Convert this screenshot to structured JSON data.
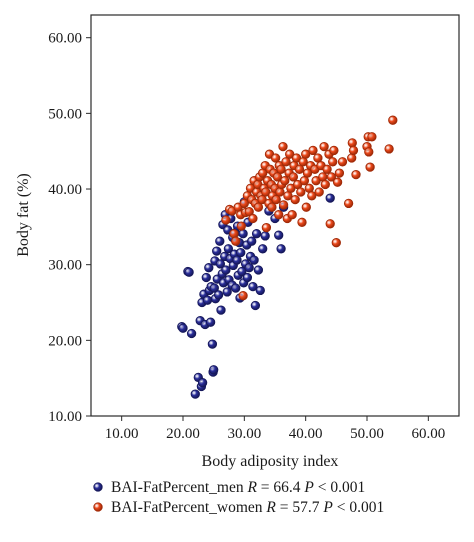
{
  "chart_data": {
    "type": "scatter",
    "xlabel": "Body adiposity index",
    "ylabel": "Body fat (%)",
    "xlim": [
      5,
      65
    ],
    "ylim": [
      10,
      63
    ],
    "x_ticks": [
      "10.00",
      "20.00",
      "30.00",
      "40.00",
      "50.00",
      "60.00"
    ],
    "y_ticks": [
      "10.00",
      "20.00",
      "30.00",
      "40.00",
      "50.00",
      "60.00"
    ],
    "grid": false,
    "legend_position": "bottom",
    "series": [
      {
        "name": "BAI-FatPercent_men",
        "legend_label": "BAI-FatPercent_men",
        "stat_prefix": "R",
        "stat_value": " = 66.4 ",
        "p_prefix": "P",
        "p_value": " < 0.001",
        "color": "#2b2f9c",
        "edge": "#16185a",
        "points": [
          [
            19.8,
            21.8
          ],
          [
            20.0,
            21.6
          ],
          [
            20.8,
            29.1
          ],
          [
            21.0,
            29.0
          ],
          [
            21.4,
            20.9
          ],
          [
            22.0,
            12.9
          ],
          [
            22.5,
            15.1
          ],
          [
            22.8,
            22.6
          ],
          [
            23.0,
            13.9
          ],
          [
            23.2,
            14.4
          ],
          [
            23.1,
            25.0
          ],
          [
            23.4,
            26.1
          ],
          [
            23.6,
            22.1
          ],
          [
            23.8,
            28.3
          ],
          [
            24.0,
            25.3
          ],
          [
            24.2,
            29.6
          ],
          [
            24.3,
            26.6
          ],
          [
            24.5,
            22.4
          ],
          [
            24.6,
            27.1
          ],
          [
            24.8,
            19.5
          ],
          [
            24.9,
            15.8
          ],
          [
            25.0,
            16.1
          ],
          [
            25.1,
            26.9
          ],
          [
            25.2,
            30.5
          ],
          [
            25.3,
            25.5
          ],
          [
            25.5,
            31.8
          ],
          [
            25.6,
            28.1
          ],
          [
            25.8,
            26.0
          ],
          [
            26.0,
            33.1
          ],
          [
            26.1,
            30.1
          ],
          [
            26.2,
            24.0
          ],
          [
            26.4,
            28.8
          ],
          [
            26.5,
            35.3
          ],
          [
            26.6,
            27.6
          ],
          [
            26.8,
            31.1
          ],
          [
            26.9,
            36.6
          ],
          [
            27.0,
            29.3
          ],
          [
            27.2,
            26.4
          ],
          [
            27.3,
            34.6
          ],
          [
            27.4,
            32.1
          ],
          [
            27.5,
            28.0
          ],
          [
            27.7,
            30.8
          ],
          [
            27.8,
            36.1
          ],
          [
            28.0,
            27.3
          ],
          [
            28.1,
            33.6
          ],
          [
            28.2,
            29.9
          ],
          [
            28.4,
            31.4
          ],
          [
            28.5,
            34.2
          ],
          [
            28.6,
            26.9
          ],
          [
            28.8,
            30.6
          ],
          [
            28.9,
            35.1
          ],
          [
            29.0,
            28.6
          ],
          [
            29.2,
            32.9
          ],
          [
            29.3,
            25.6
          ],
          [
            29.4,
            31.6
          ],
          [
            29.6,
            29.1
          ],
          [
            29.8,
            34.1
          ],
          [
            29.9,
            27.6
          ],
          [
            30.0,
            38.3
          ],
          [
            30.2,
            30.1
          ],
          [
            30.4,
            32.6
          ],
          [
            30.5,
            28.3
          ],
          [
            30.6,
            35.6
          ],
          [
            30.8,
            29.6
          ],
          [
            31.0,
            31.1
          ],
          [
            31.2,
            33.1
          ],
          [
            31.4,
            27.1
          ],
          [
            31.6,
            30.6
          ],
          [
            31.8,
            24.6
          ],
          [
            32.0,
            34.1
          ],
          [
            32.3,
            29.3
          ],
          [
            32.6,
            26.6
          ],
          [
            33.0,
            32.1
          ],
          [
            33.4,
            33.8
          ],
          [
            34.0,
            37.1
          ],
          [
            35.0,
            36.1
          ],
          [
            35.6,
            33.9
          ],
          [
            36.0,
            32.1
          ],
          [
            36.4,
            37.6
          ],
          [
            44.0,
            38.8
          ]
        ]
      },
      {
        "name": "BAI-FatPercent_women",
        "legend_label": "BAI-FatPercent_women",
        "stat_prefix": "R",
        "stat_value": " = 57.7 ",
        "p_prefix": "P",
        "p_value": " < 0.001",
        "color": "#ee4a1c",
        "edge": "#a02a08",
        "points": [
          [
            27.0,
            35.9
          ],
          [
            27.6,
            37.3
          ],
          [
            28.0,
            37.1
          ],
          [
            28.3,
            34.1
          ],
          [
            28.6,
            33.1
          ],
          [
            29.0,
            37.6
          ],
          [
            29.4,
            36.6
          ],
          [
            29.5,
            35.1
          ],
          [
            29.8,
            25.9
          ],
          [
            30.0,
            38.1
          ],
          [
            30.2,
            36.9
          ],
          [
            30.5,
            39.1
          ],
          [
            30.8,
            37.0
          ],
          [
            31.0,
            40.1
          ],
          [
            31.2,
            38.6
          ],
          [
            31.4,
            36.1
          ],
          [
            31.6,
            41.1
          ],
          [
            31.8,
            38.1
          ],
          [
            32.0,
            39.6
          ],
          [
            32.2,
            40.6
          ],
          [
            32.3,
            37.6
          ],
          [
            32.5,
            41.6
          ],
          [
            32.7,
            39.1
          ],
          [
            32.9,
            38.6
          ],
          [
            33.0,
            42.1
          ],
          [
            33.2,
            40.1
          ],
          [
            33.4,
            43.1
          ],
          [
            33.5,
            39.6
          ],
          [
            33.6,
            34.9
          ],
          [
            33.8,
            41.1
          ],
          [
            34.0,
            38.1
          ],
          [
            34.1,
            44.6
          ],
          [
            34.2,
            42.6
          ],
          [
            34.4,
            40.6
          ],
          [
            34.5,
            37.6
          ],
          [
            34.6,
            39.1
          ],
          [
            34.8,
            42.1
          ],
          [
            35.0,
            40.1
          ],
          [
            35.1,
            44.1
          ],
          [
            35.2,
            38.6
          ],
          [
            35.4,
            41.6
          ],
          [
            35.6,
            36.6
          ],
          [
            35.7,
            43.1
          ],
          [
            35.8,
            39.6
          ],
          [
            36.0,
            42.6
          ],
          [
            36.1,
            40.6
          ],
          [
            36.3,
            45.6
          ],
          [
            36.4,
            37.9
          ],
          [
            36.6,
            41.1
          ],
          [
            36.8,
            43.6
          ],
          [
            37.0,
            36.1
          ],
          [
            37.1,
            39.1
          ],
          [
            37.3,
            42.1
          ],
          [
            37.4,
            44.6
          ],
          [
            37.6,
            40.1
          ],
          [
            37.8,
            36.6
          ],
          [
            38.0,
            41.6
          ],
          [
            38.1,
            43.1
          ],
          [
            38.3,
            38.6
          ],
          [
            38.5,
            44.1
          ],
          [
            38.7,
            40.6
          ],
          [
            39.0,
            42.6
          ],
          [
            39.2,
            39.6
          ],
          [
            39.4,
            35.6
          ],
          [
            39.6,
            43.6
          ],
          [
            39.8,
            41.1
          ],
          [
            40.0,
            44.6
          ],
          [
            40.1,
            37.6
          ],
          [
            40.3,
            42.1
          ],
          [
            40.6,
            40.1
          ],
          [
            40.8,
            43.1
          ],
          [
            41.0,
            39.1
          ],
          [
            41.2,
            45.1
          ],
          [
            41.5,
            42.6
          ],
          [
            41.7,
            41.1
          ],
          [
            42.0,
            44.1
          ],
          [
            42.2,
            39.6
          ],
          [
            42.5,
            43.1
          ],
          [
            42.8,
            41.6
          ],
          [
            43.0,
            45.6
          ],
          [
            43.2,
            40.6
          ],
          [
            43.5,
            42.6
          ],
          [
            43.8,
            44.6
          ],
          [
            44.0,
            35.4
          ],
          [
            44.2,
            41.6
          ],
          [
            44.4,
            43.6
          ],
          [
            44.6,
            45.1
          ],
          [
            45.0,
            32.9
          ],
          [
            45.2,
            40.9
          ],
          [
            45.5,
            42.1
          ],
          [
            46.0,
            43.6
          ],
          [
            47.0,
            38.1
          ],
          [
            47.5,
            44.1
          ],
          [
            47.6,
            46.1
          ],
          [
            47.8,
            45.1
          ],
          [
            48.2,
            41.9
          ],
          [
            50.0,
            45.6
          ],
          [
            50.2,
            46.9
          ],
          [
            50.3,
            44.9
          ],
          [
            50.5,
            42.9
          ],
          [
            50.8,
            46.9
          ],
          [
            53.6,
            45.3
          ],
          [
            54.2,
            49.1
          ]
        ]
      }
    ]
  }
}
